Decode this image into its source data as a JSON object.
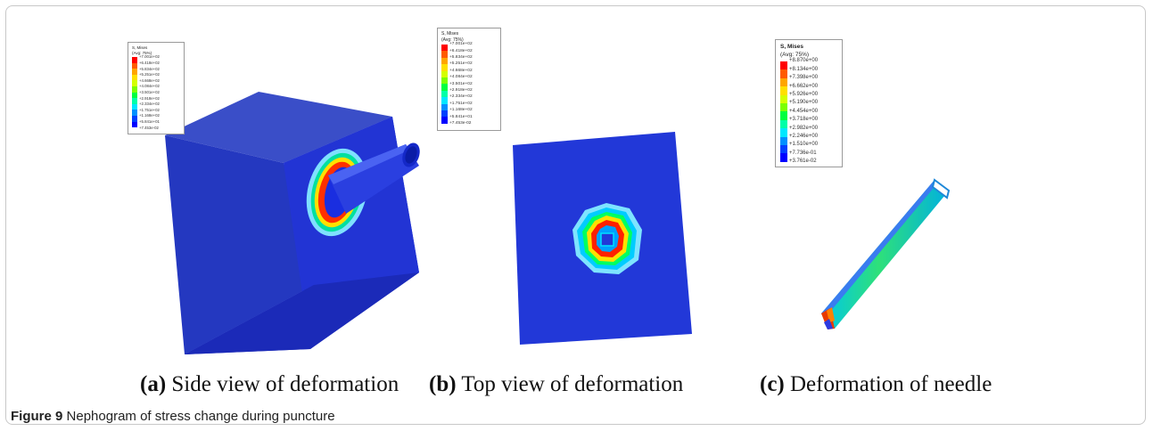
{
  "panels": [
    {
      "id": "a",
      "label": "(a)",
      "caption": "Side view of deformation",
      "legend": {
        "title_line1": "S, Mises",
        "title_line2": "(Avg: 75%)",
        "ticks": [
          "+7.001e+02",
          "+6.418e+02",
          "+5.834e+02",
          "+5.251e+02",
          "+4.668e+02",
          "+4.084e+02",
          "+3.501e+02",
          "+2.918e+02",
          "+2.334e+02",
          "+1.751e+02",
          "+1.168e+02",
          "+5.841e+01",
          "+7.453e-02"
        ]
      }
    },
    {
      "id": "b",
      "label": "(b)",
      "caption": "Top view of deformation",
      "legend": {
        "title_line1": "S, Mises",
        "title_line2": "(Avg: 75%)",
        "ticks": [
          "+7.001e+02",
          "+6.418e+02",
          "+5.834e+02",
          "+5.251e+02",
          "+4.668e+02",
          "+4.084e+02",
          "+3.501e+02",
          "+2.918e+02",
          "+2.334e+02",
          "+1.751e+02",
          "+1.168e+02",
          "+5.841e+01",
          "+7.453e-02"
        ]
      }
    },
    {
      "id": "c",
      "label": "(c)",
      "caption": "Deformation of needle",
      "legend": {
        "title_line1": "S, Mises",
        "title_line2": "(Avg: 75%)",
        "ticks": [
          "+8.870e+00",
          "+8.134e+00",
          "+7.398e+00",
          "+6.662e+00",
          "+5.926e+00",
          "+5.190e+00",
          "+4.454e+00",
          "+3.718e+00",
          "+2.982e+00",
          "+2.246e+00",
          "+1.510e+00",
          "+7.736e-01",
          "+3.761e-02"
        ]
      }
    }
  ],
  "colormap": [
    "#ff0000",
    "#ff5a00",
    "#ffa500",
    "#ffe000",
    "#d4ff00",
    "#7cff00",
    "#00ff40",
    "#00ffa8",
    "#00e8ff",
    "#0090ff",
    "#0040ff",
    "#0000ff"
  ],
  "figure_caption": {
    "label": "Figure 9",
    "text": "Nephogram of stress change during puncture"
  }
}
